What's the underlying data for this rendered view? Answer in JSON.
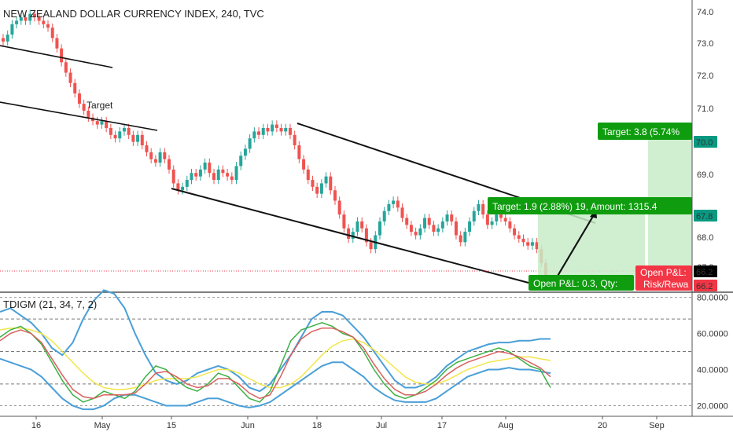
{
  "chart_data": [
    {
      "type": "candlestick",
      "title": "NEW ZEALAND DOLLAR CURRENCY INDEX, 240, TVC",
      "ylim": [
        65.8,
        74.2
      ],
      "y_ticks": [
        "74.0",
        "73.0",
        "72.0",
        "71.0",
        "70.0",
        "69.0",
        "68.0",
        "67.2",
        "66.4",
        "66.2"
      ],
      "x_ticks": [
        "16",
        "May",
        "15",
        "Jun",
        "18",
        "Jul",
        "17",
        "Aug",
        "20",
        "Sep"
      ],
      "closes": [
        73.0,
        73.2,
        73.5,
        73.6,
        73.7,
        73.6,
        73.8,
        73.7,
        73.6,
        73.5,
        73.4,
        73.1,
        72.8,
        72.4,
        72.1,
        71.8,
        71.5,
        71.2,
        71.0,
        70.8,
        70.7,
        70.6,
        70.7,
        70.5,
        70.3,
        70.2,
        70.4,
        70.5,
        70.3,
        70.1,
        70.3,
        70.0,
        69.8,
        69.6,
        69.5,
        69.8,
        69.6,
        69.3,
        68.9,
        68.7,
        68.8,
        69.0,
        69.2,
        69.1,
        69.3,
        69.5,
        69.2,
        69.0,
        69.3,
        69.2,
        69.1,
        69.0,
        69.4,
        69.7,
        69.9,
        70.2,
        70.4,
        70.3,
        70.5,
        70.4,
        70.6,
        70.5,
        70.4,
        70.5,
        70.3,
        70.0,
        69.6,
        69.3,
        69.0,
        68.8,
        68.6,
        68.9,
        69.1,
        68.7,
        68.4,
        68.0,
        67.6,
        67.3,
        67.5,
        67.8,
        67.6,
        67.2,
        67.0,
        67.4,
        67.8,
        68.1,
        68.3,
        68.4,
        68.2,
        67.9,
        67.7,
        67.5,
        67.4,
        67.6,
        67.9,
        67.7,
        67.5,
        67.6,
        67.8,
        68.0,
        67.8,
        67.4,
        67.2,
        67.5,
        67.8,
        68.1,
        68.3,
        68.0,
        67.7,
        67.8,
        68.0,
        67.9,
        67.8,
        67.6,
        67.4,
        67.3,
        67.2,
        67.1,
        67.2,
        67.0,
        66.6,
        66.2
      ],
      "annotations": [
        {
          "text": "Target"
        },
        {
          "text": "Target: 3.8 (5.74%"
        },
        {
          "text": "Target: 1.9 (2.88%) 19, Amount: 1315.4"
        },
        {
          "text": "Open P&L: 0.3, Qty:"
        },
        {
          "text": "Open P&L:"
        },
        {
          "text": "Risk/Rewa"
        }
      ],
      "price_labels": [
        {
          "value": "70.0",
          "color": "#089981"
        },
        {
          "value": "67.8",
          "color": "#089981"
        },
        {
          "value": "66.2",
          "color": "#000000"
        },
        {
          "value": "66.2",
          "color": "#f23645"
        }
      ],
      "current_price": 66.2
    },
    {
      "type": "line",
      "title": "TDIGM (21, 34, 7, 2)",
      "ylim": [
        15,
        82
      ],
      "y_ticks": [
        "80.0000",
        "60.0000",
        "40.0000",
        "20.0000"
      ],
      "dashed_levels": [
        32,
        50,
        68
      ],
      "series": [
        {
          "color": "#4a9fd8",
          "values": [
            72,
            74,
            70,
            66,
            60,
            52,
            48,
            55,
            68,
            78,
            84,
            82,
            74,
            60,
            48,
            38,
            34,
            32,
            34,
            38,
            40,
            42,
            40,
            36,
            30,
            28,
            32,
            40,
            48,
            58,
            68,
            72,
            72,
            70,
            64,
            58,
            50,
            42,
            34,
            30,
            30,
            32,
            36,
            42,
            46,
            50,
            52,
            54,
            55,
            55,
            56,
            56,
            57,
            57
          ]
        },
        {
          "color": "#4a9fd8",
          "values": [
            46,
            44,
            42,
            40,
            36,
            30,
            24,
            20,
            18,
            18,
            20,
            24,
            26,
            26,
            24,
            22,
            20,
            20,
            20,
            22,
            24,
            24,
            22,
            20,
            19,
            20,
            22,
            26,
            30,
            34,
            38,
            42,
            44,
            44,
            40,
            36,
            30,
            26,
            23,
            22,
            22,
            22,
            24,
            28,
            32,
            36,
            38,
            40,
            40,
            41,
            40,
            40,
            39,
            38
          ]
        },
        {
          "color": "#f2e64a",
          "values": [
            62,
            63,
            63,
            62,
            60,
            56,
            50,
            44,
            38,
            33,
            30,
            29,
            29,
            30,
            32,
            34,
            35,
            35,
            35,
            36,
            38,
            40,
            40,
            38,
            35,
            32,
            30,
            30,
            32,
            36,
            42,
            48,
            53,
            56,
            57,
            55,
            51,
            46,
            41,
            36,
            33,
            32,
            32,
            34,
            37,
            40,
            42,
            44,
            45,
            46,
            47,
            47,
            46,
            45
          ]
        },
        {
          "color": "#3cb043",
          "values": [
            58,
            62,
            64,
            60,
            54,
            44,
            34,
            26,
            22,
            24,
            28,
            26,
            24,
            28,
            36,
            42,
            40,
            34,
            30,
            28,
            32,
            38,
            36,
            30,
            24,
            22,
            28,
            42,
            56,
            62,
            64,
            66,
            64,
            60,
            58,
            50,
            40,
            32,
            26,
            24,
            26,
            30,
            34,
            40,
            44,
            46,
            48,
            50,
            52,
            50,
            46,
            42,
            40,
            30
          ]
        },
        {
          "color": "#d95f5f",
          "values": [
            56,
            60,
            62,
            60,
            55,
            46,
            37,
            29,
            25,
            24,
            26,
            26,
            26,
            27,
            32,
            38,
            39,
            36,
            32,
            30,
            31,
            35,
            35,
            32,
            27,
            24,
            26,
            36,
            48,
            57,
            61,
            63,
            63,
            61,
            58,
            52,
            43,
            35,
            29,
            26,
            26,
            28,
            32,
            37,
            41,
            44,
            46,
            48,
            50,
            49,
            47,
            44,
            41,
            36
          ]
        }
      ]
    }
  ],
  "ui": {
    "price_axis_color": "#333333",
    "up_color": "#26a69a",
    "down_color": "#ef5350",
    "profit_zone_color": "#c8ecc8",
    "loss_label_color": "#f23645"
  }
}
